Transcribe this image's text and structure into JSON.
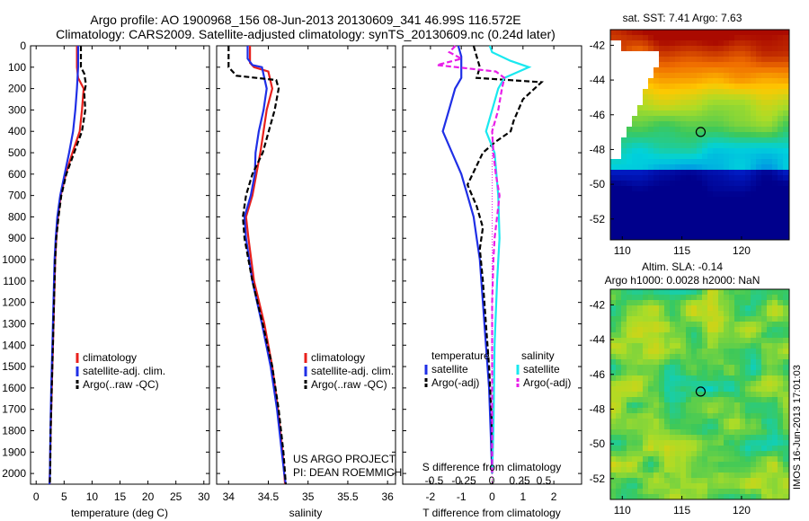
{
  "header": {
    "line1": "Argo profile: AO 1900968_156 08-Jun-2013 20130609_341 46.99S 116.572E",
    "line2": "Climatology: CARS2009. Satellite-adjusted climatology: synTS_20130609.nc (0.24d later)"
  },
  "footer": {
    "project": "US ARGO PROJECT",
    "pi": "PI: DEAN ROEMMICH",
    "stamp": "IMOS 16-Jun-2013 17:01:03"
  },
  "colors": {
    "climatology": "#e8201c",
    "satellite": "#1f2fe6",
    "argo": "#000000",
    "sal_satellite": "#19e8ef",
    "sal_argo": "#e81ee8"
  },
  "chart_data": [
    {
      "type": "line",
      "panel": "temperature",
      "xlabel": "temperature (deg C)",
      "ylim": [
        2050,
        0
      ],
      "xlim": [
        -1,
        31
      ],
      "xticks": [
        0,
        5,
        10,
        15,
        20,
        25,
        30
      ],
      "yticks": [
        0,
        100,
        200,
        300,
        400,
        500,
        600,
        700,
        800,
        900,
        1000,
        1100,
        1200,
        1300,
        1400,
        1500,
        1600,
        1700,
        1800,
        1900,
        2000
      ],
      "legend": [
        "climatology",
        "satellite-adj. clim.",
        "Argo(..raw -QC)"
      ],
      "series": [
        {
          "name": "climatology",
          "color": "#e8201c",
          "dash": "",
          "points": [
            [
              7.3,
              0
            ],
            [
              7.3,
              100
            ],
            [
              7.5,
              150
            ],
            [
              8.5,
              200
            ],
            [
              8.2,
              300
            ],
            [
              7.8,
              400
            ],
            [
              6.5,
              500
            ],
            [
              5.3,
              600
            ],
            [
              4.4,
              700
            ],
            [
              3.9,
              800
            ],
            [
              3.6,
              900
            ],
            [
              3.4,
              1000
            ],
            [
              3.2,
              1200
            ],
            [
              3.0,
              1400
            ],
            [
              2.8,
              1600
            ],
            [
              2.6,
              1800
            ],
            [
              2.45,
              2000
            ],
            [
              2.4,
              2050
            ]
          ]
        },
        {
          "name": "satellite-adj. clim.",
          "color": "#1f2fe6",
          "dash": "",
          "points": [
            [
              7.5,
              0
            ],
            [
              7.5,
              100
            ],
            [
              7.3,
              200
            ],
            [
              7.0,
              300
            ],
            [
              6.6,
              400
            ],
            [
              5.9,
              500
            ],
            [
              5.1,
              600
            ],
            [
              4.3,
              700
            ],
            [
              3.8,
              800
            ],
            [
              3.5,
              900
            ],
            [
              3.3,
              1000
            ],
            [
              3.1,
              1200
            ],
            [
              2.9,
              1400
            ],
            [
              2.7,
              1600
            ],
            [
              2.55,
              1800
            ],
            [
              2.45,
              2000
            ],
            [
              2.4,
              2050
            ]
          ]
        },
        {
          "name": "Argo(..raw -QC)",
          "color": "#000000",
          "dash": "6,3",
          "points": [
            [
              8.0,
              0
            ],
            [
              8.0,
              100
            ],
            [
              8.6,
              130
            ],
            [
              8.9,
              180
            ],
            [
              8.6,
              220
            ],
            [
              8.8,
              300
            ],
            [
              8.2,
              400
            ],
            [
              6.8,
              500
            ],
            [
              5.4,
              600
            ],
            [
              4.5,
              700
            ],
            [
              4.0,
              800
            ],
            [
              3.6,
              900
            ],
            [
              3.4,
              1000
            ],
            [
              3.2,
              1200
            ],
            [
              3.0,
              1400
            ],
            [
              2.8,
              1600
            ],
            [
              2.6,
              1800
            ],
            [
              2.5,
              2000
            ],
            [
              2.45,
              2050
            ]
          ]
        }
      ]
    },
    {
      "type": "line",
      "panel": "salinity",
      "xlabel": "salinity",
      "ylim": [
        2050,
        0
      ],
      "xlim": [
        33.85,
        36.1
      ],
      "xticks": [
        34,
        34.5,
        35,
        35.5,
        36
      ],
      "legend": [
        "climatology",
        "satellite-adj. clim.",
        "Argo(..raw -QC)"
      ],
      "series": [
        {
          "name": "climatology",
          "color": "#e8201c",
          "dash": "",
          "points": [
            [
              34.27,
              0
            ],
            [
              34.27,
              80
            ],
            [
              34.32,
              100
            ],
            [
              34.5,
              120
            ],
            [
              34.55,
              200
            ],
            [
              34.48,
              300
            ],
            [
              34.4,
              500
            ],
            [
              34.3,
              700
            ],
            [
              34.22,
              800
            ],
            [
              34.25,
              900
            ],
            [
              34.32,
              1100
            ],
            [
              34.45,
              1300
            ],
            [
              34.55,
              1500
            ],
            [
              34.62,
              1700
            ],
            [
              34.68,
              1900
            ],
            [
              34.7,
              2000
            ],
            [
              34.71,
              2050
            ]
          ]
        },
        {
          "name": "satellite-adj. clim.",
          "color": "#1f2fe6",
          "dash": "",
          "points": [
            [
              34.24,
              0
            ],
            [
              34.24,
              60
            ],
            [
              34.3,
              90
            ],
            [
              34.42,
              100
            ],
            [
              34.48,
              200
            ],
            [
              34.44,
              300
            ],
            [
              34.38,
              400
            ],
            [
              34.34,
              500
            ],
            [
              34.33,
              600
            ],
            [
              34.28,
              700
            ],
            [
              34.2,
              800
            ],
            [
              34.22,
              900
            ],
            [
              34.3,
              1100
            ],
            [
              34.42,
              1300
            ],
            [
              34.53,
              1500
            ],
            [
              34.61,
              1700
            ],
            [
              34.67,
              1900
            ],
            [
              34.7,
              2000
            ],
            [
              34.72,
              2050
            ]
          ]
        },
        {
          "name": "Argo(..raw -QC)",
          "color": "#000000",
          "dash": "6,3",
          "points": [
            [
              34.0,
              0
            ],
            [
              34.0,
              100
            ],
            [
              34.1,
              140
            ],
            [
              34.6,
              160
            ],
            [
              34.63,
              200
            ],
            [
              34.58,
              300
            ],
            [
              34.43,
              500
            ],
            [
              34.3,
              600
            ],
            [
              34.22,
              700
            ],
            [
              34.18,
              800
            ],
            [
              34.2,
              900
            ],
            [
              34.3,
              1100
            ],
            [
              34.43,
              1300
            ],
            [
              34.55,
              1500
            ],
            [
              34.63,
              1700
            ],
            [
              34.69,
              1900
            ],
            [
              34.71,
              2000
            ],
            [
              34.72,
              2050
            ]
          ]
        }
      ]
    },
    {
      "type": "line",
      "panel": "difference",
      "xlabel": "T difference from climatology",
      "top_axis_label": "S difference from climatology",
      "ylim": [
        2050,
        0
      ],
      "xlim_T": [
        -2.9,
        2.9
      ],
      "xticks_T": [
        -2,
        -1,
        0,
        1,
        2
      ],
      "xticks_S": [
        -0.5,
        -0.25,
        0,
        0.25,
        0.5
      ],
      "xtick_labels_S": [
        "-0.5",
        "-0.25",
        "0",
        "0.25",
        "0.5"
      ],
      "legend_titles": [
        "temperature",
        "salinity"
      ],
      "legend": [
        "satellite",
        "Argo(-adj)",
        "satellite",
        "Argo(-adj)"
      ],
      "series": [
        {
          "name": "satellite",
          "group": "temperature",
          "color": "#1f2fe6",
          "dash": "",
          "points": [
            [
              -1.1,
              0
            ],
            [
              -1.0,
              50
            ],
            [
              -1.0,
              100
            ],
            [
              -1.0,
              150
            ],
            [
              -1.2,
              200
            ],
            [
              -1.4,
              300
            ],
            [
              -1.6,
              400
            ],
            [
              -1.3,
              500
            ],
            [
              -1.0,
              600
            ],
            [
              -0.8,
              700
            ],
            [
              -0.6,
              800
            ],
            [
              -0.5,
              900
            ],
            [
              -0.4,
              1000
            ],
            [
              -0.3,
              1200
            ],
            [
              -0.2,
              1400
            ],
            [
              -0.1,
              1600
            ],
            [
              -0.05,
              1800
            ],
            [
              0,
              2000
            ]
          ]
        },
        {
          "name": "Argo(-adj)",
          "group": "temperature",
          "color": "#000000",
          "dash": "6,3",
          "points": [
            [
              -0.6,
              0
            ],
            [
              -0.5,
              50
            ],
            [
              -0.4,
              100
            ],
            [
              -0.5,
              150
            ],
            [
              1.6,
              170
            ],
            [
              1.0,
              250
            ],
            [
              0.7,
              350
            ],
            [
              0.6,
              400
            ],
            [
              0.1,
              450
            ],
            [
              -0.3,
              500
            ],
            [
              -0.8,
              650
            ],
            [
              -0.5,
              750
            ],
            [
              -0.3,
              850
            ],
            [
              -0.4,
              950
            ],
            [
              -0.3,
              1100
            ],
            [
              -0.2,
              1300
            ],
            [
              -0.1,
              1500
            ],
            [
              0,
              1800
            ],
            [
              0,
              2000
            ]
          ]
        },
        {
          "name": "satellite",
          "group": "salinity",
          "color": "#19e8ef",
          "dash": "",
          "points": [
            [
              -0.02,
              0
            ],
            [
              0.0,
              30
            ],
            [
              0.15,
              70
            ],
            [
              0.3,
              100
            ],
            [
              0.1,
              150
            ],
            [
              0.05,
              200
            ],
            [
              0.0,
              300
            ],
            [
              -0.05,
              400
            ],
            [
              0.02,
              500
            ],
            [
              0.05,
              700
            ],
            [
              0.06,
              900
            ],
            [
              0.04,
              1100
            ],
            [
              0.02,
              1400
            ],
            [
              0.01,
              1800
            ],
            [
              0.0,
              2000
            ]
          ]
        },
        {
          "name": "Argo(-adj)",
          "group": "salinity",
          "color": "#e81ee8",
          "dash": "6,3",
          "points": [
            [
              -0.3,
              0
            ],
            [
              -0.35,
              30
            ],
            [
              -0.25,
              60
            ],
            [
              -0.45,
              90
            ],
            [
              0.03,
              120
            ],
            [
              0.1,
              150
            ],
            [
              0.08,
              200
            ],
            [
              0.05,
              300
            ],
            [
              0.0,
              400
            ],
            [
              0.01,
              500
            ],
            [
              0.03,
              600
            ],
            [
              0.06,
              700
            ],
            [
              0.04,
              800
            ],
            [
              0.02,
              900
            ],
            [
              0.01,
              1000
            ],
            [
              0.0,
              1200
            ],
            [
              0.0,
              2000
            ]
          ]
        }
      ]
    },
    {
      "type": "heatmap",
      "panel": "sst_map",
      "title": "sat. SST: 7.41 Argo: 7.63",
      "xticks": [
        110,
        115,
        120
      ],
      "yticks": [
        -42,
        -44,
        -46,
        -48,
        -50,
        -52
      ],
      "xlim": [
        109,
        124
      ],
      "ylim": [
        -53.2,
        -41.1
      ],
      "argo_position": {
        "lon": 116.572,
        "lat": -46.99
      }
    },
    {
      "type": "heatmap",
      "panel": "sla_map",
      "title": "Altim. SLA: -0.14",
      "subtitle": "Argo h1000: 0.0028 h2000: NaN",
      "xticks": [
        110,
        115,
        120
      ],
      "yticks": [
        -42,
        -44,
        -46,
        -48,
        -50,
        -52
      ],
      "xlim": [
        109,
        124
      ],
      "ylim": [
        -53.2,
        -41.1
      ],
      "argo_position": {
        "lon": 116.572,
        "lat": -46.99
      }
    }
  ]
}
